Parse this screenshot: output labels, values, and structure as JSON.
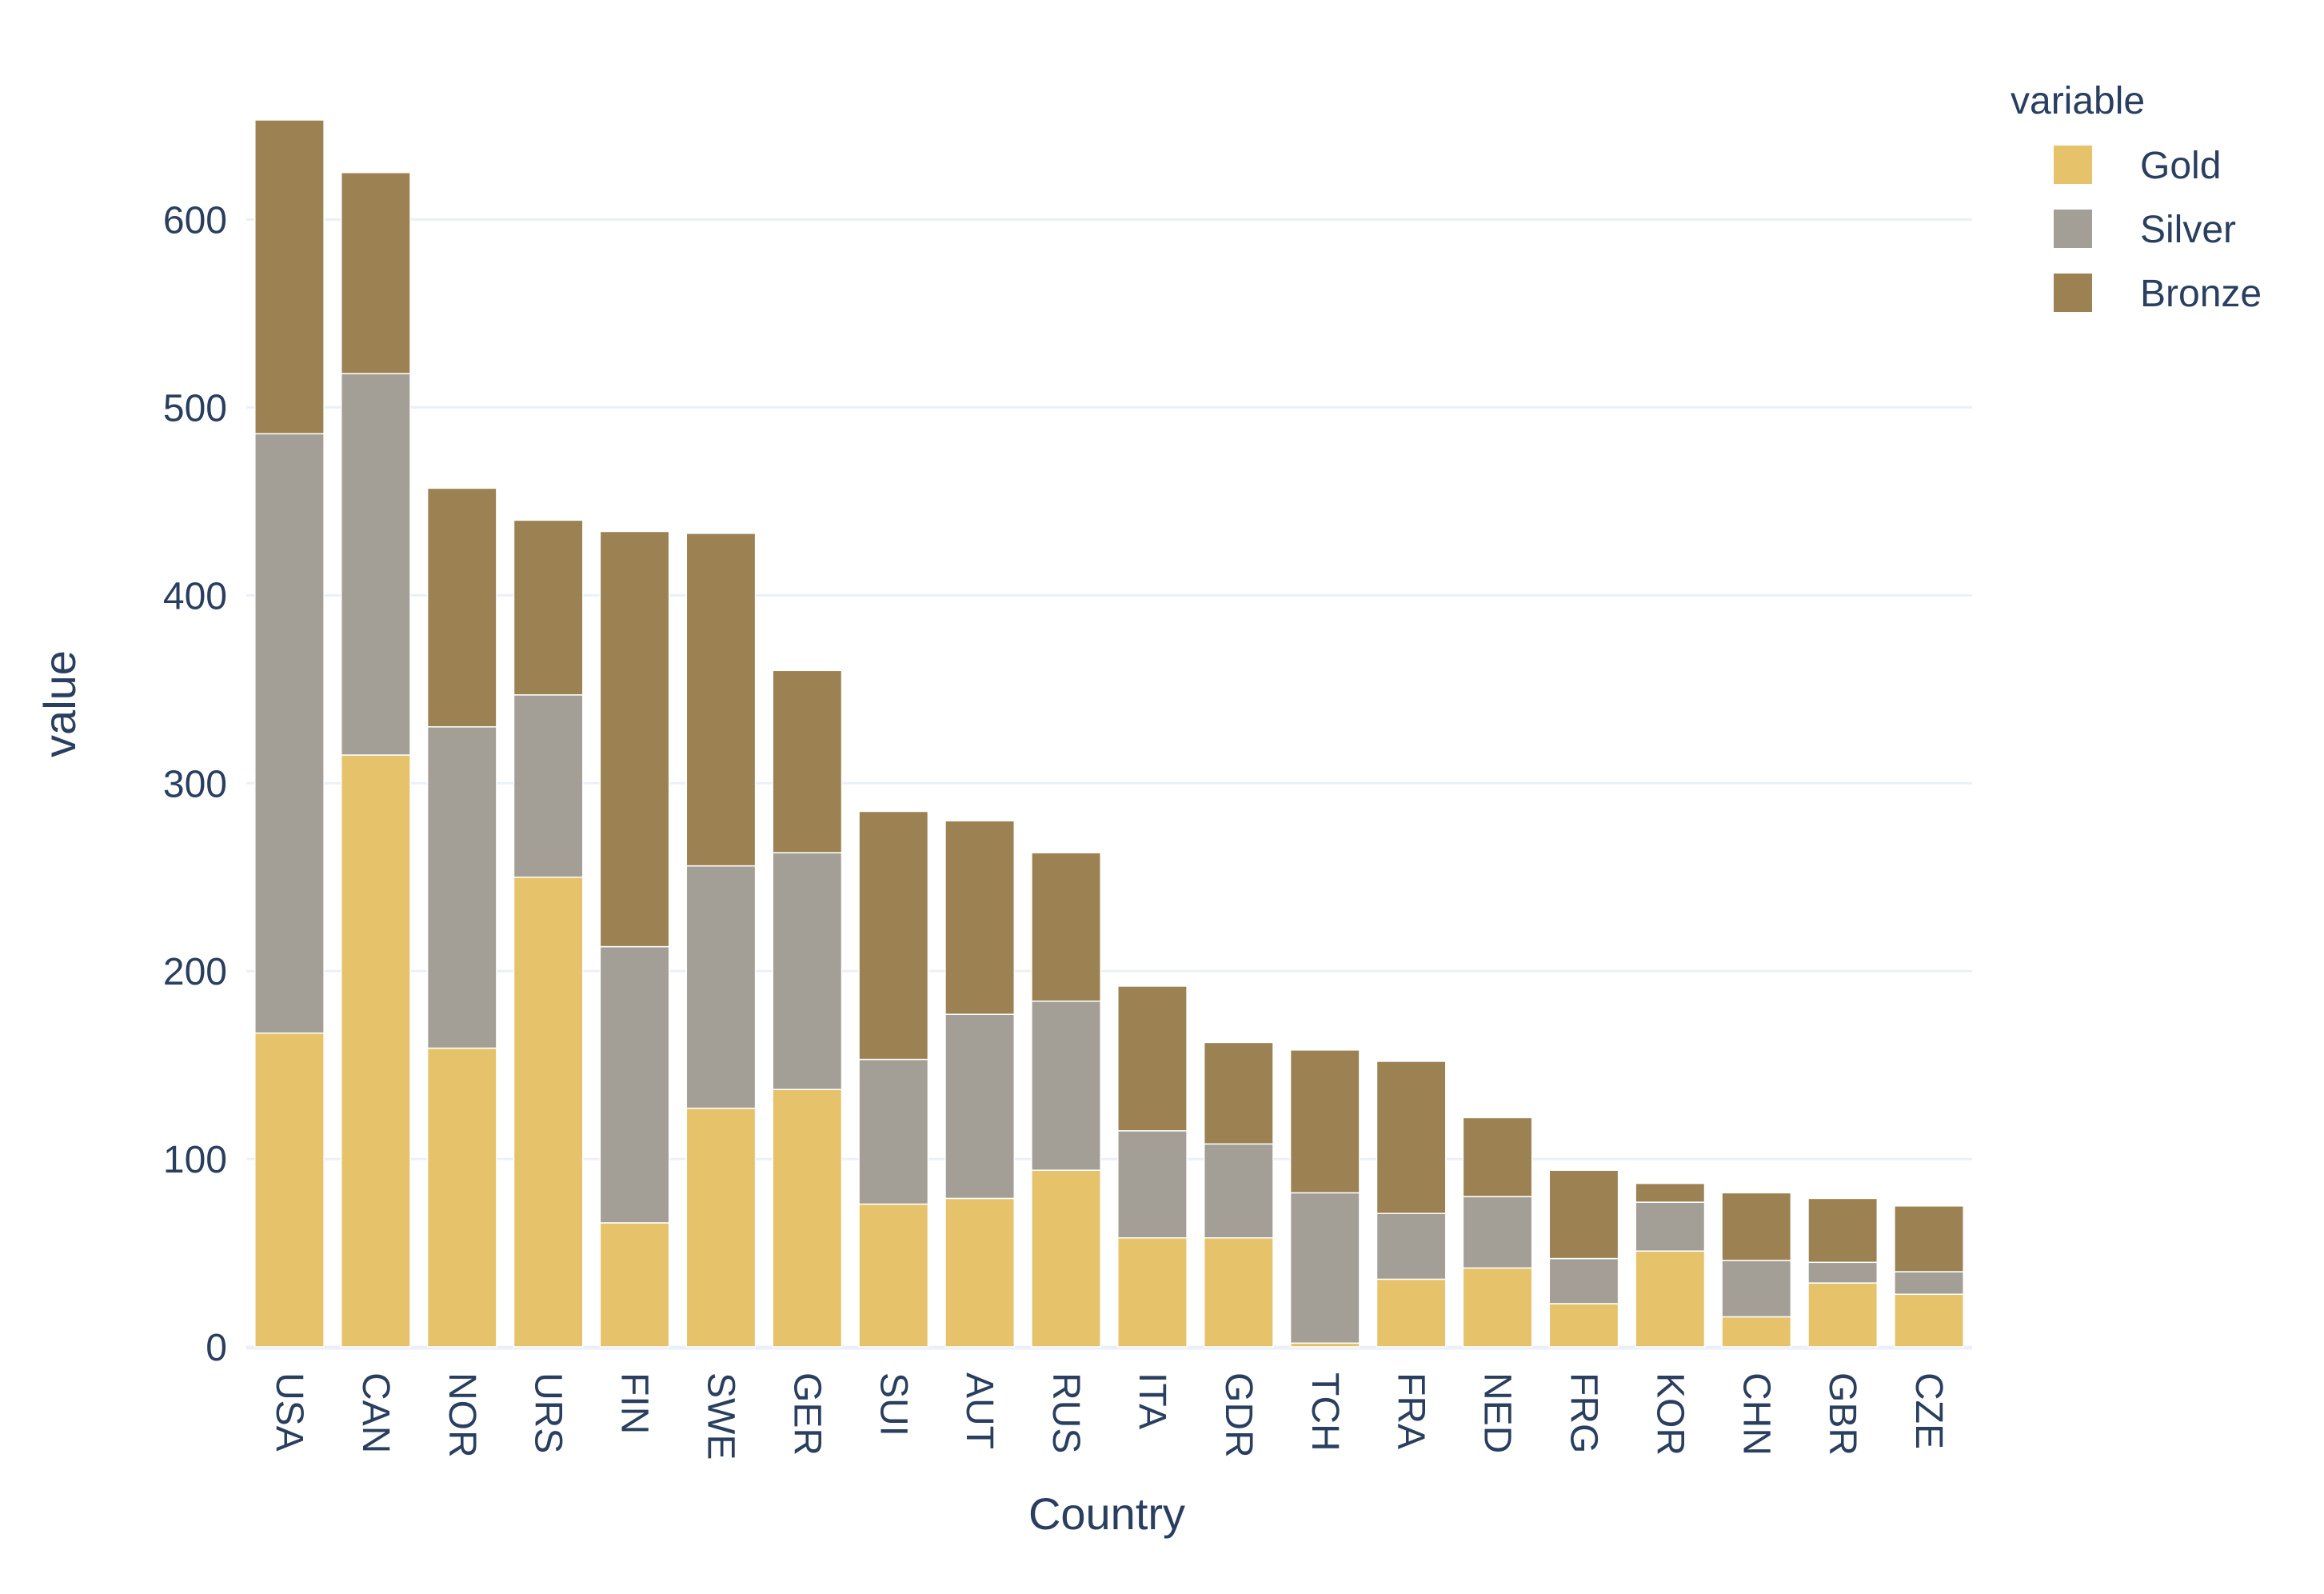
{
  "chart_data": {
    "type": "bar",
    "barmode": "stack",
    "xlabel": "Country",
    "ylabel": "value",
    "ylim": [
      0,
      653
    ],
    "yticks": [
      0,
      100,
      200,
      300,
      400,
      500,
      600
    ],
    "grid": true,
    "legend": {
      "title": "variable",
      "placement": "top-right",
      "items": [
        "Gold",
        "Silver",
        "Bronze"
      ]
    },
    "categories": [
      "USA",
      "CAN",
      "NOR",
      "URS",
      "FIN",
      "SWE",
      "GER",
      "SUI",
      "AUT",
      "RUS",
      "ITA",
      "GDR",
      "TCH",
      "FRA",
      "NED",
      "FRG",
      "KOR",
      "CHN",
      "GBR",
      "CZE"
    ],
    "series": [
      {
        "name": "Gold",
        "color": "#e6c26a",
        "values": [
          167,
          315,
          159,
          250,
          66,
          127,
          137,
          76,
          79,
          94,
          58,
          58,
          2,
          36,
          42,
          23,
          51,
          16,
          34,
          28
        ]
      },
      {
        "name": "Silver",
        "color": "#a39f96",
        "values": [
          319,
          203,
          171,
          97,
          147,
          129,
          126,
          77,
          98,
          90,
          57,
          50,
          80,
          35,
          38,
          24,
          26,
          30,
          11,
          12
        ]
      },
      {
        "name": "Bronze",
        "color": "#9c8152",
        "values": [
          167,
          107,
          127,
          93,
          221,
          177,
          97,
          132,
          103,
          79,
          77,
          54,
          76,
          81,
          42,
          47,
          10,
          36,
          34,
          35
        ]
      }
    ]
  }
}
